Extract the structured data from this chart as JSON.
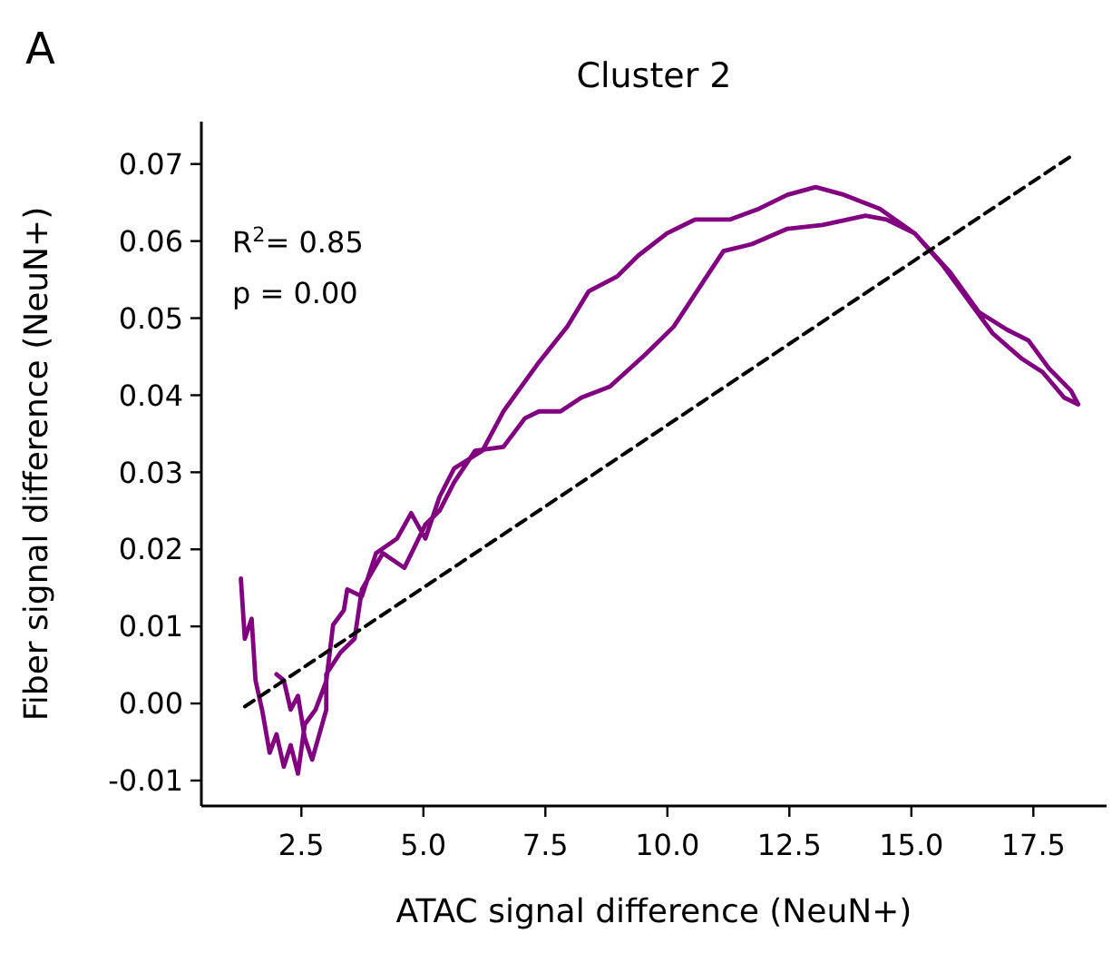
{
  "chart_data": {
    "type": "line",
    "title": "Cluster 2",
    "xlabel": "ATAC signal difference (NeuN+)",
    "ylabel": "Fiber signal difference (NeuN+)",
    "annotations": [
      "A",
      "R$^{2}$= 0.85",
      "p = 0.00"
    ],
    "xlim": [
      0.45,
      19.0
    ],
    "ylim": [
      -0.0133,
      0.0755
    ],
    "xticks": [
      2.5,
      {
        "value": 5,
        "label": "5.0"
      },
      7.5,
      {
        "value": 10,
        "label": "10.0"
      },
      12.5,
      {
        "value": 15,
        "label": "15.0"
      },
      17.5
    ],
    "yticks": [
      -0.01,
      {
        "value": 0,
        "label": "0.00"
      },
      0.01,
      0.02,
      0.03,
      0.04,
      0.05,
      0.06,
      0.07
    ],
    "grid": false,
    "marker": "none",
    "series": [
      {
        "color": "#800080",
        "line_style": "solid",
        "x": [
          1.26,
          1.34,
          1.48,
          1.56,
          1.7,
          1.85,
          1.99,
          2.14,
          2.28,
          2.43,
          2.57,
          2.79,
          3.01,
          3.15,
          3.37,
          3.44,
          3.74,
          4.03,
          4.46,
          4.75,
          5.04,
          5.33,
          5.63,
          6.21,
          6.64,
          7.37,
          7.95,
          8.39,
          8.97,
          9.4,
          9.99,
          10.57,
          11.29,
          11.88,
          12.46,
          13.04,
          13.62,
          14.35,
          15.07,
          15.8,
          16.38,
          16.96,
          17.4,
          17.83,
          18.27,
          18.42,
          18.13,
          17.69,
          17.25,
          16.67,
          16.24,
          15.65,
          15.07,
          14.49,
          14.06,
          13.18,
          12.46,
          11.73,
          11.15,
          10.71,
          10.13,
          9.55,
          8.82,
          8.24,
          7.81,
          7.37,
          7.08,
          6.64,
          6.06,
          5.63,
          5.33,
          5.04,
          4.61,
          4.17,
          3.74,
          3.59,
          3.3,
          3.01,
          3.01,
          2.72,
          2.57,
          2.43,
          2.28,
          2.14,
          1.99
        ],
        "values": [
          0.0162,
          0.0084,
          0.011,
          0.003,
          -0.001,
          -0.0064,
          -0.004,
          -0.0082,
          -0.0054,
          -0.0091,
          -0.0027,
          -0.0008,
          0.0029,
          0.0102,
          0.0121,
          0.0148,
          0.0139,
          0.0195,
          0.0214,
          0.0247,
          0.0214,
          0.0268,
          0.0305,
          0.0328,
          0.0379,
          0.0443,
          0.0489,
          0.0535,
          0.0554,
          0.0581,
          0.061,
          0.0628,
          0.0628,
          0.0642,
          0.066,
          0.067,
          0.066,
          0.0642,
          0.061,
          0.0559,
          0.0508,
          0.0485,
          0.0471,
          0.0434,
          0.0406,
          0.0388,
          0.0397,
          0.043,
          0.0448,
          0.048,
          0.0517,
          0.0568,
          0.061,
          0.0628,
          0.0633,
          0.0621,
          0.0616,
          0.0596,
          0.0587,
          0.0545,
          0.0489,
          0.0453,
          0.0411,
          0.0397,
          0.0379,
          0.0379,
          0.037,
          0.0333,
          0.0328,
          0.0287,
          0.025,
          0.0232,
          0.0176,
          0.0195,
          0.0148,
          0.0084,
          0.0066,
          0.0038,
          -0.0008,
          -0.0073,
          -0.0045,
          0.001,
          -0.0008,
          0.003,
          0.0038
        ]
      },
      {
        "type": "line",
        "color": "#000000",
        "line_style": "dashed",
        "x": [
          1.34,
          18.34
        ],
        "values": [
          -0.0004,
          0.0713
        ]
      }
    ]
  }
}
